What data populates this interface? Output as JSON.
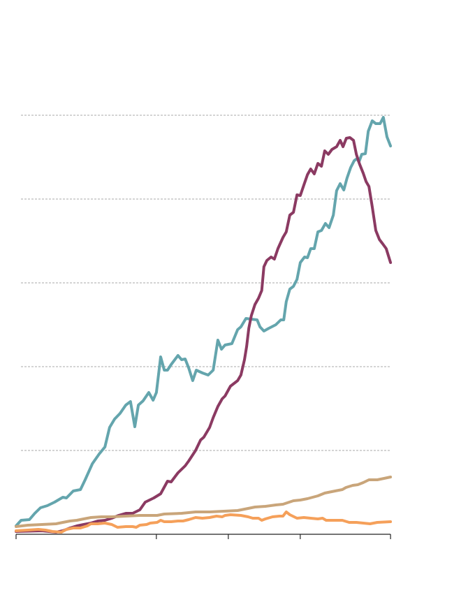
{
  "chart_data": {
    "type": "line",
    "title": "",
    "xlabel": "",
    "ylabel": "",
    "xlim": [
      0,
      104.1
    ],
    "ylim": [
      0,
      500
    ],
    "grid": true,
    "gridlines_y": [
      100,
      200,
      300,
      400,
      500
    ],
    "x_ticks": [
      0,
      39,
      59,
      79,
      104.1
    ],
    "series": [
      {
        "name": "teal",
        "color": "#64a5ad",
        "points": [
          [
            0,
            10
          ],
          [
            1.4,
            16.7
          ],
          [
            3.7,
            17.5
          ],
          [
            5.2,
            25
          ],
          [
            6.8,
            31.7
          ],
          [
            8.7,
            34.2
          ],
          [
            10.7,
            38.3
          ],
          [
            13,
            44.2
          ],
          [
            14,
            43.3
          ],
          [
            15.9,
            51.7
          ],
          [
            17.9,
            53.3
          ],
          [
            19.2,
            65
          ],
          [
            21.2,
            84.2
          ],
          [
            23.1,
            95.8
          ],
          [
            24.7,
            104.2
          ],
          [
            26,
            127.5
          ],
          [
            27.4,
            137.5
          ],
          [
            28.9,
            144.2
          ],
          [
            30.5,
            154.2
          ],
          [
            31.8,
            158.3
          ],
          [
            33,
            128.3
          ],
          [
            34,
            154.2
          ],
          [
            35.3,
            159.2
          ],
          [
            36.9,
            169.2
          ],
          [
            38.1,
            160
          ],
          [
            39,
            169.2
          ],
          [
            40.2,
            211.7
          ],
          [
            41.2,
            195.8
          ],
          [
            42.1,
            195.8
          ],
          [
            43.1,
            202.5
          ],
          [
            45,
            213.3
          ],
          [
            46,
            208.3
          ],
          [
            47,
            209.2
          ],
          [
            48,
            198.3
          ],
          [
            49.1,
            183.3
          ],
          [
            50.1,
            195.8
          ],
          [
            51.8,
            192.5
          ],
          [
            53.4,
            190
          ],
          [
            54.8,
            195.8
          ],
          [
            56.1,
            231.7
          ],
          [
            57.1,
            220.8
          ],
          [
            58.1,
            225.8
          ],
          [
            60,
            227.5
          ],
          [
            61.6,
            244.2
          ],
          [
            62.5,
            247.5
          ],
          [
            63.9,
            257.5
          ],
          [
            65.4,
            256.7
          ],
          [
            67,
            255.8
          ],
          [
            67.8,
            247.5
          ],
          [
            68.9,
            242.5
          ],
          [
            70.3,
            245.8
          ],
          [
            72.2,
            250
          ],
          [
            73.6,
            255.8
          ],
          [
            74.4,
            255.8
          ],
          [
            75.1,
            277.5
          ],
          [
            76.1,
            292.5
          ],
          [
            77.1,
            295.8
          ],
          [
            78.1,
            304.2
          ],
          [
            79,
            324.2
          ],
          [
            80.2,
            330.8
          ],
          [
            81,
            330
          ],
          [
            81.9,
            340.8
          ],
          [
            82.9,
            340.8
          ],
          [
            83.9,
            360.8
          ],
          [
            84.9,
            362.5
          ],
          [
            86,
            370.8
          ],
          [
            87,
            365.8
          ],
          [
            88.2,
            380.8
          ],
          [
            89.1,
            410
          ],
          [
            90.1,
            418.3
          ],
          [
            91.1,
            410.8
          ],
          [
            92,
            425
          ],
          [
            93,
            437.5
          ],
          [
            94,
            445.8
          ],
          [
            94.8,
            448.3
          ],
          [
            95.3,
            444.2
          ],
          [
            96.1,
            453.3
          ],
          [
            97.1,
            454.2
          ],
          [
            97.9,
            480.8
          ],
          [
            99,
            493.3
          ],
          [
            100,
            490
          ],
          [
            101.2,
            490
          ],
          [
            102.1,
            497.5
          ],
          [
            103.1,
            474.2
          ],
          [
            104.1,
            463.3
          ]
        ]
      },
      {
        "name": "maroon",
        "color": "#8b3a62",
        "points": [
          [
            0,
            3.3
          ],
          [
            7.2,
            4.2
          ],
          [
            11.1,
            2.5
          ],
          [
            13,
            4.2
          ],
          [
            15,
            7.5
          ],
          [
            16.9,
            10
          ],
          [
            18.8,
            11.7
          ],
          [
            20.8,
            13.3
          ],
          [
            22.7,
            15.8
          ],
          [
            24.7,
            16.7
          ],
          [
            26.6,
            19.2
          ],
          [
            28.5,
            22.5
          ],
          [
            30.5,
            25
          ],
          [
            32.4,
            25
          ],
          [
            34.4,
            29.2
          ],
          [
            35.9,
            38.3
          ],
          [
            38.3,
            43.3
          ],
          [
            40.2,
            48.3
          ],
          [
            42.1,
            63.3
          ],
          [
            43.1,
            62.5
          ],
          [
            45,
            73.3
          ],
          [
            47,
            81.7
          ],
          [
            48,
            87.5
          ],
          [
            49.9,
            100
          ],
          [
            51.3,
            112.5
          ],
          [
            52.2,
            115.8
          ],
          [
            53.8,
            127.5
          ],
          [
            54.8,
            139.2
          ],
          [
            56.1,
            152.5
          ],
          [
            57.3,
            161.7
          ],
          [
            58.1,
            165
          ],
          [
            59.6,
            176.7
          ],
          [
            61.6,
            183.3
          ],
          [
            62.5,
            190
          ],
          [
            63.5,
            208.3
          ],
          [
            64.1,
            224.2
          ],
          [
            64.7,
            245.8
          ],
          [
            65.4,
            260.8
          ],
          [
            66.4,
            274.2
          ],
          [
            67.4,
            281.7
          ],
          [
            68.3,
            290.8
          ],
          [
            68.9,
            319.2
          ],
          [
            69.7,
            326.7
          ],
          [
            70.9,
            330.8
          ],
          [
            71.8,
            328.3
          ],
          [
            72.8,
            340.8
          ],
          [
            74.2,
            354.2
          ],
          [
            75.1,
            360.8
          ],
          [
            76.1,
            380.8
          ],
          [
            77.1,
            384.2
          ],
          [
            78.1,
            405
          ],
          [
            79,
            404.2
          ],
          [
            80,
            416.7
          ],
          [
            81,
            429.2
          ],
          [
            81.9,
            435.8
          ],
          [
            82.9,
            430
          ],
          [
            83.9,
            442.5
          ],
          [
            84.9,
            439.2
          ],
          [
            85.8,
            457.5
          ],
          [
            86.8,
            453.3
          ],
          [
            87.8,
            459.2
          ],
          [
            89.1,
            462.5
          ],
          [
            90.1,
            470
          ],
          [
            90.9,
            462.5
          ],
          [
            91.8,
            472.5
          ],
          [
            92.8,
            473.3
          ],
          [
            93.8,
            470
          ],
          [
            94.6,
            453.3
          ],
          [
            95.5,
            441.7
          ],
          [
            96.5,
            430.8
          ],
          [
            97.3,
            420.8
          ],
          [
            98.1,
            415
          ],
          [
            99,
            390.8
          ],
          [
            100,
            362.5
          ],
          [
            101,
            351.7
          ],
          [
            101.9,
            346.7
          ],
          [
            102.9,
            340.8
          ],
          [
            103.5,
            332.5
          ],
          [
            104.1,
            324.2
          ]
        ]
      },
      {
        "name": "tan",
        "color": "#c9a57a",
        "points": [
          [
            0,
            9.2
          ],
          [
            3.3,
            10.8
          ],
          [
            7.2,
            11.7
          ],
          [
            11.1,
            12.5
          ],
          [
            13,
            14.2
          ],
          [
            15,
            15.8
          ],
          [
            16.9,
            16.7
          ],
          [
            18.8,
            18.3
          ],
          [
            20.8,
            20
          ],
          [
            23.7,
            20.8
          ],
          [
            26.6,
            20.8
          ],
          [
            30.5,
            21.7
          ],
          [
            34.4,
            22.5
          ],
          [
            39.2,
            22.5
          ],
          [
            41.2,
            24.2
          ],
          [
            46,
            25
          ],
          [
            49.9,
            26.7
          ],
          [
            53.8,
            26.7
          ],
          [
            57.7,
            27.5
          ],
          [
            61.6,
            28.3
          ],
          [
            64.5,
            30.8
          ],
          [
            66.4,
            32.5
          ],
          [
            69.3,
            33.3
          ],
          [
            72.2,
            35
          ],
          [
            74.2,
            35.8
          ],
          [
            77.1,
            40
          ],
          [
            79,
            40.8
          ],
          [
            81,
            42.5
          ],
          [
            83.9,
            45.8
          ],
          [
            85.8,
            49.2
          ],
          [
            88.7,
            51.7
          ],
          [
            90.7,
            53.3
          ],
          [
            91.7,
            55.8
          ],
          [
            93.6,
            58.3
          ],
          [
            95,
            59.2
          ],
          [
            96.5,
            61.7
          ],
          [
            98.1,
            65
          ],
          [
            100.4,
            65
          ],
          [
            102.3,
            66.7
          ],
          [
            104.1,
            68.3
          ]
        ]
      },
      {
        "name": "orange",
        "color": "#f5a05a",
        "points": [
          [
            0,
            4.2
          ],
          [
            3.3,
            5
          ],
          [
            6.2,
            5.8
          ],
          [
            8.2,
            5
          ],
          [
            10.1,
            3.3
          ],
          [
            12.6,
            2.5
          ],
          [
            14,
            5.8
          ],
          [
            15.9,
            7.5
          ],
          [
            17.9,
            7.5
          ],
          [
            19.8,
            10
          ],
          [
            20.8,
            12.5
          ],
          [
            22.7,
            12.5
          ],
          [
            24.7,
            13.3
          ],
          [
            26.6,
            11.7
          ],
          [
            28.2,
            8.3
          ],
          [
            30.5,
            9.2
          ],
          [
            32.4,
            9.2
          ],
          [
            33.4,
            8.3
          ],
          [
            34.4,
            10.8
          ],
          [
            36.3,
            11.7
          ],
          [
            37.3,
            13.3
          ],
          [
            39.2,
            14.2
          ],
          [
            40.2,
            16.7
          ],
          [
            41.2,
            15
          ],
          [
            43.1,
            15
          ],
          [
            45,
            15.8
          ],
          [
            46.4,
            15.8
          ],
          [
            48,
            17.5
          ],
          [
            49.9,
            20
          ],
          [
            51.8,
            19.2
          ],
          [
            53.8,
            20
          ],
          [
            55.7,
            21.7
          ],
          [
            57.3,
            20.8
          ],
          [
            58.1,
            22.5
          ],
          [
            59.6,
            23.3
          ],
          [
            62.5,
            22.5
          ],
          [
            64.5,
            20.8
          ],
          [
            65.8,
            19.2
          ],
          [
            67.4,
            19.2
          ],
          [
            68.3,
            16.7
          ],
          [
            69.3,
            18.3
          ],
          [
            71.3,
            20.8
          ],
          [
            73.2,
            21.7
          ],
          [
            74.2,
            21.7
          ],
          [
            75.1,
            26.7
          ],
          [
            76.1,
            23.3
          ],
          [
            78.1,
            19.2
          ],
          [
            80,
            20
          ],
          [
            81.9,
            19.2
          ],
          [
            83.9,
            18.3
          ],
          [
            85.2,
            19.2
          ],
          [
            86.2,
            16.7
          ],
          [
            87.8,
            16.7
          ],
          [
            90.7,
            16.7
          ],
          [
            92.6,
            14.2
          ],
          [
            94.6,
            14.2
          ],
          [
            96.5,
            13.3
          ],
          [
            98.4,
            12.5
          ],
          [
            99.4,
            13.3
          ],
          [
            100.4,
            14.2
          ],
          [
            104.1,
            15
          ]
        ]
      }
    ],
    "grid_color": "#aaaaaa",
    "axis_color": "#222222"
  }
}
